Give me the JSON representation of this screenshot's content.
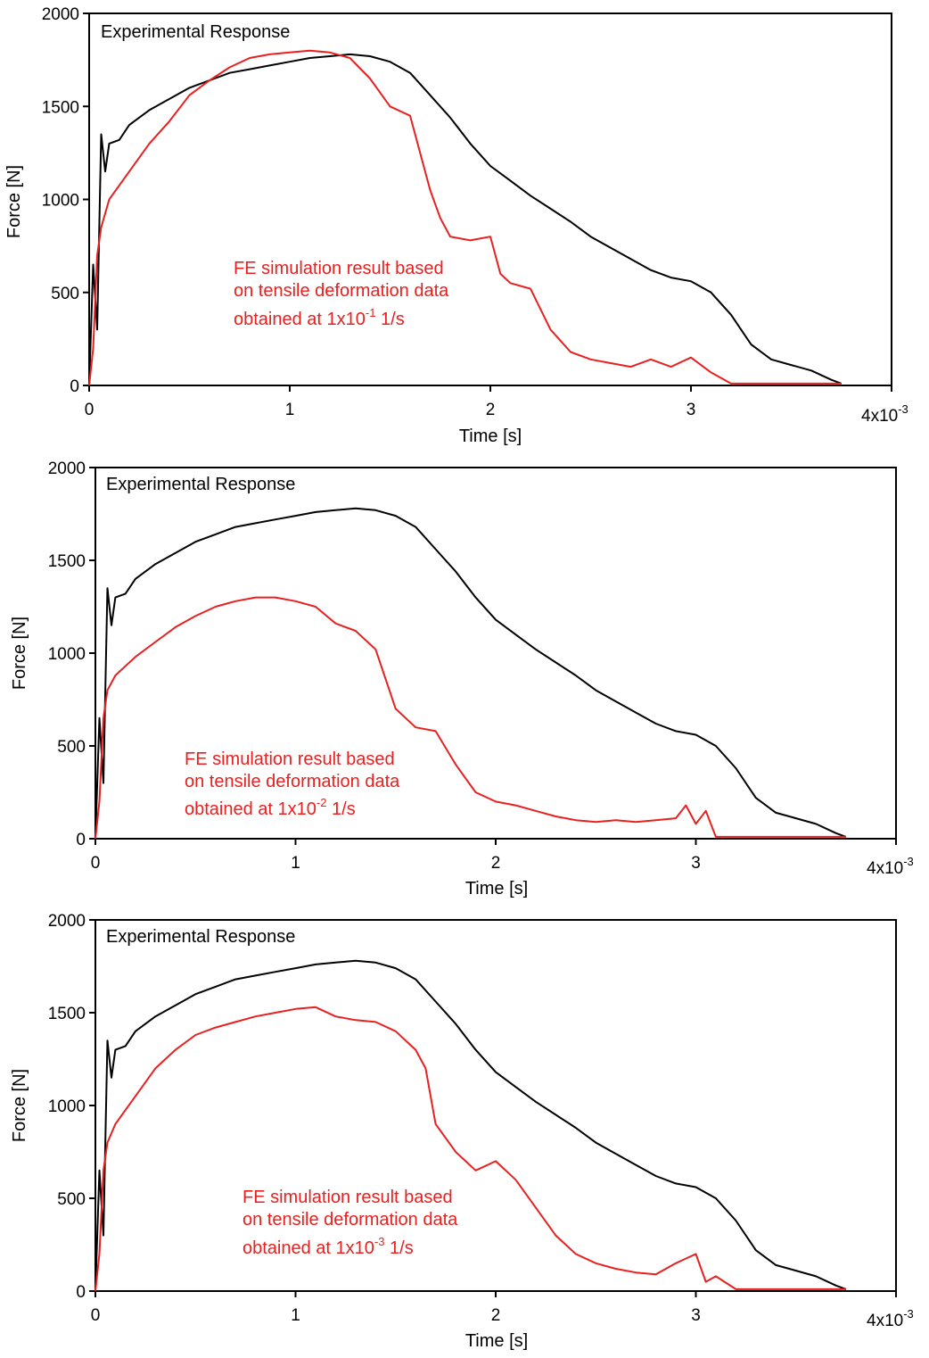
{
  "colors": {
    "experimental": "#000000",
    "simulation": "#e8201f",
    "axis": "#000000"
  },
  "chart_data": [
    {
      "type": "line",
      "title": "",
      "xlabel": "Time [s]",
      "ylabel": "Force [N]",
      "xlim": [
        0,
        0.004
      ],
      "ylim": [
        0,
        2000
      ],
      "x_ticks": [
        "0",
        "1",
        "2",
        "3"
      ],
      "x_exponent_label": "4x10",
      "x_exponent_sup": "-3",
      "y_ticks": [
        "0",
        "500",
        "1000",
        "1500",
        "2000"
      ],
      "legend_experimental": "Experimental Response",
      "annotation_lines": [
        "FE simulation result based",
        "on tensile deformation data",
        "obtained at 1x10"
      ],
      "annotation_sup": "-1",
      "annotation_tail": " 1/s",
      "series": [
        {
          "name": "Experimental Response",
          "color": "#000000",
          "x": [
            0,
            2e-05,
            4e-05,
            6e-05,
            8e-05,
            0.0001,
            0.00015,
            0.0002,
            0.0003,
            0.0004,
            0.0005,
            0.0006,
            0.0007,
            0.0008,
            0.0009,
            0.001,
            0.0011,
            0.0012,
            0.0013,
            0.0014,
            0.0015,
            0.0016,
            0.0017,
            0.0018,
            0.0019,
            0.002,
            0.0021,
            0.0022,
            0.0023,
            0.0024,
            0.0025,
            0.0026,
            0.0027,
            0.0028,
            0.0029,
            0.003,
            0.0031,
            0.0032,
            0.0033,
            0.0034,
            0.0035,
            0.0036,
            0.0037,
            0.00375
          ],
          "values": [
            0,
            650,
            300,
            1350,
            1150,
            1300,
            1320,
            1400,
            1480,
            1540,
            1600,
            1640,
            1680,
            1700,
            1720,
            1740,
            1760,
            1770,
            1780,
            1770,
            1740,
            1680,
            1560,
            1440,
            1300,
            1180,
            1100,
            1020,
            950,
            880,
            800,
            740,
            680,
            620,
            580,
            560,
            500,
            380,
            220,
            140,
            110,
            80,
            30,
            10
          ]
        },
        {
          "name": "FE simulation 1x10^-1 1/s",
          "color": "#e8201f",
          "x": [
            0,
            2e-05,
            4e-05,
            6e-05,
            0.0001,
            0.0002,
            0.0003,
            0.0004,
            0.0005,
            0.0006,
            0.0007,
            0.0008,
            0.0009,
            0.001,
            0.0011,
            0.0012,
            0.0013,
            0.0014,
            0.0015,
            0.0016,
            0.0017,
            0.00175,
            0.0018,
            0.0019,
            0.002,
            0.00205,
            0.0021,
            0.0022,
            0.0023,
            0.0024,
            0.0025,
            0.0026,
            0.0027,
            0.0028,
            0.0029,
            0.003,
            0.0031,
            0.0032,
            0.0033,
            0.0034,
            0.0035,
            0.0036,
            0.0037,
            0.00375
          ],
          "values": [
            0,
            200,
            700,
            850,
            1000,
            1150,
            1300,
            1420,
            1560,
            1640,
            1710,
            1760,
            1780,
            1790,
            1800,
            1790,
            1760,
            1650,
            1500,
            1450,
            1050,
            900,
            800,
            780,
            800,
            600,
            550,
            520,
            300,
            180,
            140,
            120,
            100,
            140,
            100,
            150,
            70,
            10,
            10,
            10,
            10,
            10,
            10,
            10
          ]
        }
      ]
    },
    {
      "type": "line",
      "title": "",
      "xlabel": "Time [s]",
      "ylabel": "Force [N]",
      "xlim": [
        0,
        0.004
      ],
      "ylim": [
        0,
        2000
      ],
      "x_ticks": [
        "0",
        "1",
        "2",
        "3"
      ],
      "x_exponent_label": "4x10",
      "x_exponent_sup": "-3",
      "y_ticks": [
        "0",
        "500",
        "1000",
        "1500",
        "2000"
      ],
      "legend_experimental": "Experimental Response",
      "annotation_lines": [
        "FE simulation result based",
        "on tensile deformation data",
        "obtained at 1x10"
      ],
      "annotation_sup": "-2",
      "annotation_tail": " 1/s",
      "series": [
        {
          "name": "Experimental Response",
          "color": "#000000",
          "x": [
            0,
            2e-05,
            4e-05,
            6e-05,
            8e-05,
            0.0001,
            0.00015,
            0.0002,
            0.0003,
            0.0004,
            0.0005,
            0.0006,
            0.0007,
            0.0008,
            0.0009,
            0.001,
            0.0011,
            0.0012,
            0.0013,
            0.0014,
            0.0015,
            0.0016,
            0.0017,
            0.0018,
            0.0019,
            0.002,
            0.0021,
            0.0022,
            0.0023,
            0.0024,
            0.0025,
            0.0026,
            0.0027,
            0.0028,
            0.0029,
            0.003,
            0.0031,
            0.0032,
            0.0033,
            0.0034,
            0.0035,
            0.0036,
            0.0037,
            0.00375
          ],
          "values": [
            0,
            650,
            300,
            1350,
            1150,
            1300,
            1320,
            1400,
            1480,
            1540,
            1600,
            1640,
            1680,
            1700,
            1720,
            1740,
            1760,
            1770,
            1780,
            1770,
            1740,
            1680,
            1560,
            1440,
            1300,
            1180,
            1100,
            1020,
            950,
            880,
            800,
            740,
            680,
            620,
            580,
            560,
            500,
            380,
            220,
            140,
            110,
            80,
            30,
            10
          ]
        },
        {
          "name": "FE simulation 1x10^-2 1/s",
          "color": "#e8201f",
          "x": [
            0,
            2e-05,
            4e-05,
            6e-05,
            0.0001,
            0.0002,
            0.0003,
            0.0004,
            0.0005,
            0.0006,
            0.0007,
            0.0008,
            0.0009,
            0.001,
            0.0011,
            0.0012,
            0.0013,
            0.0014,
            0.0015,
            0.0016,
            0.0017,
            0.0018,
            0.0019,
            0.002,
            0.0021,
            0.0022,
            0.0023,
            0.0024,
            0.0025,
            0.0026,
            0.0027,
            0.0028,
            0.0029,
            0.00295,
            0.003,
            0.00305,
            0.0031,
            0.0032,
            0.0033,
            0.0034,
            0.0035,
            0.0036,
            0.0037,
            0.00375
          ],
          "values": [
            0,
            200,
            650,
            800,
            880,
            980,
            1060,
            1140,
            1200,
            1250,
            1280,
            1300,
            1300,
            1280,
            1250,
            1160,
            1120,
            1020,
            700,
            600,
            580,
            400,
            250,
            200,
            180,
            150,
            120,
            100,
            90,
            100,
            90,
            100,
            110,
            180,
            80,
            150,
            10,
            10,
            10,
            10,
            10,
            10,
            10,
            10
          ]
        }
      ]
    },
    {
      "type": "line",
      "title": "",
      "xlabel": "Time [s]",
      "ylabel": "Force [N]",
      "xlim": [
        0,
        0.004
      ],
      "ylim": [
        0,
        2000
      ],
      "x_ticks": [
        "0",
        "1",
        "2",
        "3"
      ],
      "x_exponent_label": "4x10",
      "x_exponent_sup": "-3",
      "y_ticks": [
        "0",
        "500",
        "1000",
        "1500",
        "2000"
      ],
      "legend_experimental": "Experimental Response",
      "annotation_lines": [
        "FE simulation result based",
        "on tensile deformation data",
        "obtained at 1x10"
      ],
      "annotation_sup": "-3",
      "annotation_tail": " 1/s",
      "series": [
        {
          "name": "Experimental Response",
          "color": "#000000",
          "x": [
            0,
            2e-05,
            4e-05,
            6e-05,
            8e-05,
            0.0001,
            0.00015,
            0.0002,
            0.0003,
            0.0004,
            0.0005,
            0.0006,
            0.0007,
            0.0008,
            0.0009,
            0.001,
            0.0011,
            0.0012,
            0.0013,
            0.0014,
            0.0015,
            0.0016,
            0.0017,
            0.0018,
            0.0019,
            0.002,
            0.0021,
            0.0022,
            0.0023,
            0.0024,
            0.0025,
            0.0026,
            0.0027,
            0.0028,
            0.0029,
            0.003,
            0.0031,
            0.0032,
            0.0033,
            0.0034,
            0.0035,
            0.0036,
            0.0037,
            0.00375
          ],
          "values": [
            0,
            650,
            300,
            1350,
            1150,
            1300,
            1320,
            1400,
            1480,
            1540,
            1600,
            1640,
            1680,
            1700,
            1720,
            1740,
            1760,
            1770,
            1780,
            1770,
            1740,
            1680,
            1560,
            1440,
            1300,
            1180,
            1100,
            1020,
            950,
            880,
            800,
            740,
            680,
            620,
            580,
            560,
            500,
            380,
            220,
            140,
            110,
            80,
            30,
            10
          ]
        },
        {
          "name": "FE simulation 1x10^-3 1/s",
          "color": "#e8201f",
          "x": [
            0,
            2e-05,
            4e-05,
            6e-05,
            0.0001,
            0.0002,
            0.0003,
            0.0004,
            0.0005,
            0.0006,
            0.0007,
            0.0008,
            0.0009,
            0.001,
            0.0011,
            0.0012,
            0.0013,
            0.0014,
            0.0015,
            0.0016,
            0.00165,
            0.0017,
            0.0018,
            0.0019,
            0.002,
            0.0021,
            0.0022,
            0.0023,
            0.0024,
            0.0025,
            0.0026,
            0.0027,
            0.0028,
            0.0029,
            0.003,
            0.00305,
            0.0031,
            0.0032,
            0.0033,
            0.0034,
            0.0035,
            0.0036,
            0.0037,
            0.00375
          ],
          "values": [
            0,
            200,
            650,
            800,
            900,
            1050,
            1200,
            1300,
            1380,
            1420,
            1450,
            1480,
            1500,
            1520,
            1530,
            1480,
            1460,
            1450,
            1400,
            1300,
            1200,
            900,
            750,
            650,
            700,
            600,
            450,
            300,
            200,
            150,
            120,
            100,
            90,
            150,
            200,
            50,
            80,
            10,
            10,
            10,
            10,
            10,
            10,
            10
          ]
        }
      ]
    }
  ]
}
